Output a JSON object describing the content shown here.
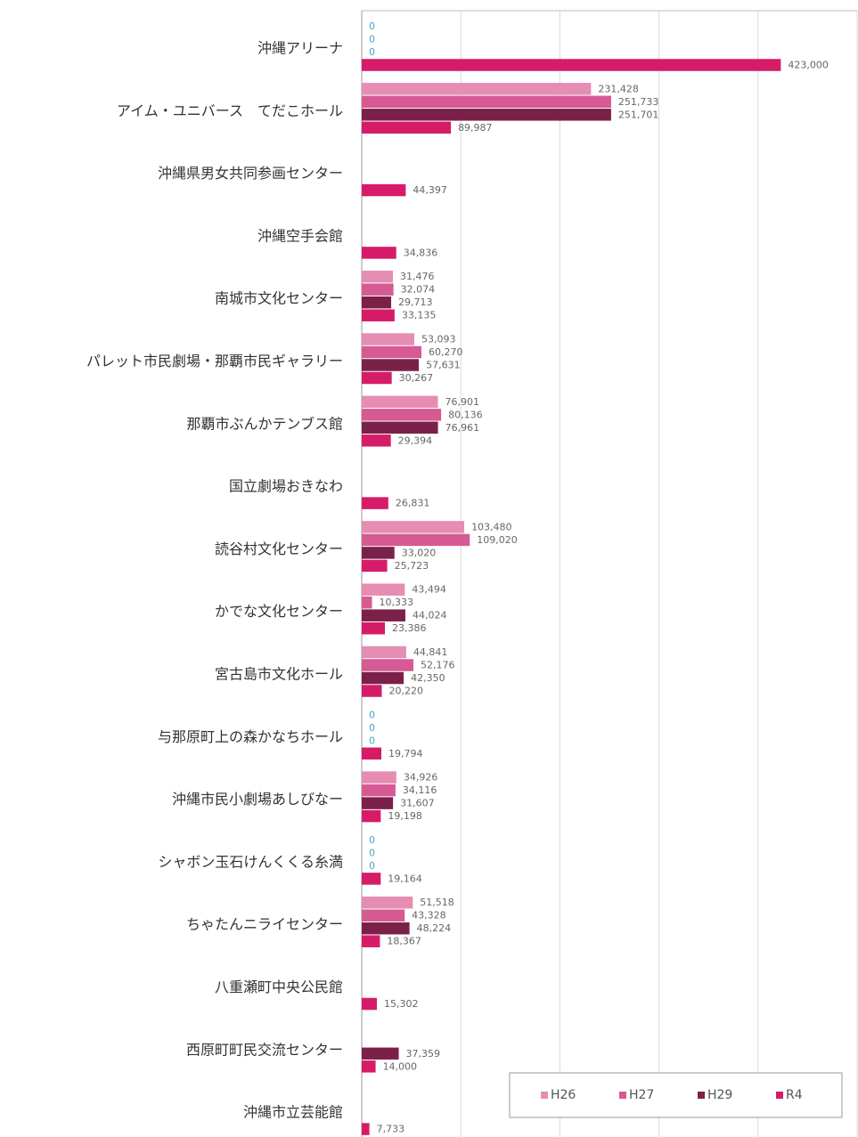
{
  "chart_data": {
    "type": "bar",
    "orientation": "horizontal",
    "categories": [
      "沖縄アリーナ",
      "アイム・ユニバース　てだこホール",
      "沖縄県男女共同参画センター",
      "沖縄空手会館",
      "南城市文化センター",
      "パレット市民劇場・那覇市民ギャラリー",
      "那覇市ぶんかテンブス館",
      "国立劇場おきなわ",
      "読谷村文化センター",
      "かでな文化センター",
      "宮古島市文化ホール",
      "与那原町上の森かなちホール",
      "沖縄市民小劇場あしびなー",
      "シャボン玉石けんくくる糸満",
      "ちゃたんニライセンター",
      "八重瀬町中央公民館",
      "西原町町民交流センター",
      "沖縄市立芸能館"
    ],
    "series": [
      {
        "name": "H26",
        "color": "#e58db3",
        "values": [
          0,
          231428,
          null,
          null,
          31476,
          53093,
          76901,
          null,
          103480,
          43494,
          44841,
          0,
          34926,
          0,
          51518,
          null,
          null,
          null
        ],
        "value_labels": [
          "0",
          "231,428",
          null,
          null,
          "31,476",
          "53,093",
          "76,901",
          null,
          "103,480",
          "43,494",
          "44,841",
          "0",
          "34,926",
          "0",
          "51,518",
          null,
          null,
          null
        ]
      },
      {
        "name": "H27",
        "color": "#d65a93",
        "values": [
          0,
          251733,
          null,
          null,
          32074,
          60270,
          80136,
          null,
          109020,
          10333,
          52176,
          0,
          34116,
          0,
          43328,
          null,
          null,
          null
        ],
        "value_labels": [
          "0",
          "251,733",
          null,
          null,
          "32,074",
          "60,270",
          "80,136",
          null,
          "109,020",
          "10,333",
          "52,176",
          "0",
          "34,116",
          "0",
          "43,328",
          null,
          null,
          null
        ]
      },
      {
        "name": "H29",
        "color": "#7b2149",
        "values": [
          0,
          251701,
          null,
          null,
          29713,
          57631,
          76961,
          null,
          33020,
          44024,
          42350,
          0,
          31607,
          0,
          48224,
          null,
          37359,
          null
        ],
        "value_labels": [
          "0",
          "251,701",
          null,
          null,
          "29,713",
          "57,631",
          "76,961",
          null,
          "33,020",
          "44,024",
          "42,350",
          "0",
          "31,607",
          "0",
          "48,224",
          null,
          "37,359",
          null
        ]
      },
      {
        "name": "R4",
        "color": "#d61c68",
        "values": [
          423000,
          89987,
          44397,
          34836,
          33135,
          30267,
          29394,
          26831,
          25723,
          23386,
          20220,
          19794,
          19198,
          19164,
          18367,
          15302,
          14000,
          7733
        ],
        "value_labels": [
          "423,000",
          "89,987",
          "44,397",
          "34,836",
          "33,135",
          "30,267",
          "29,394",
          "26,831",
          "25,723",
          "23,386",
          "20,220",
          "19,794",
          "19,198",
          "19,164",
          "18,367",
          "15,302",
          "14,000",
          "7,733"
        ]
      }
    ],
    "xlim": [
      0,
      500000
    ],
    "xticks": [
      0,
      100000,
      200000,
      300000,
      400000,
      500000
    ],
    "grid": true,
    "legend": "lower right"
  }
}
